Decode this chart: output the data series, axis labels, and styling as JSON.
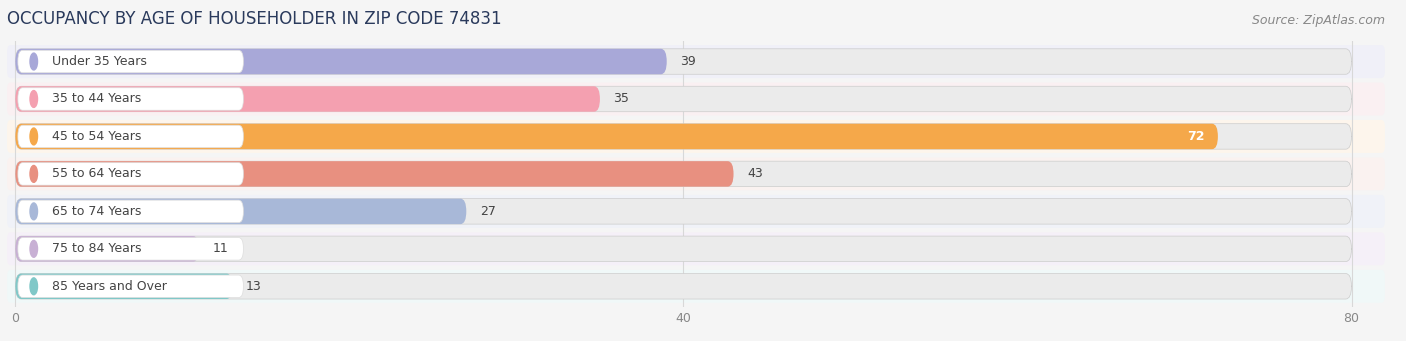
{
  "title": "OCCUPANCY BY AGE OF HOUSEHOLDER IN ZIP CODE 74831",
  "source": "Source: ZipAtlas.com",
  "categories": [
    "Under 35 Years",
    "35 to 44 Years",
    "45 to 54 Years",
    "55 to 64 Years",
    "65 to 74 Years",
    "75 to 84 Years",
    "85 Years and Over"
  ],
  "values": [
    39,
    35,
    72,
    43,
    27,
    11,
    13
  ],
  "bar_colors": [
    "#a8a8d8",
    "#f4a0b0",
    "#f5a84a",
    "#e89080",
    "#a8b8d8",
    "#c8b0d4",
    "#80c8c8"
  ],
  "bar_bg_color": "#ebebeb",
  "row_bg_colors": [
    "#f0f0f8",
    "#faf0f2",
    "#fdf5ec",
    "#faf2f0",
    "#f0f2f8",
    "#f5f0f8",
    "#f0f8f8"
  ],
  "xlim_max": 80,
  "xticks": [
    0,
    40,
    80
  ],
  "label_dark": "#444444",
  "label_white": "#ffffff",
  "title_fontsize": 12,
  "source_fontsize": 9,
  "tick_fontsize": 9,
  "bar_label_fontsize": 9,
  "category_fontsize": 9,
  "fig_bg_color": "#f5f5f5",
  "value_inside_threshold": 68,
  "grid_color": "#d8d8d8",
  "white": "#ffffff"
}
